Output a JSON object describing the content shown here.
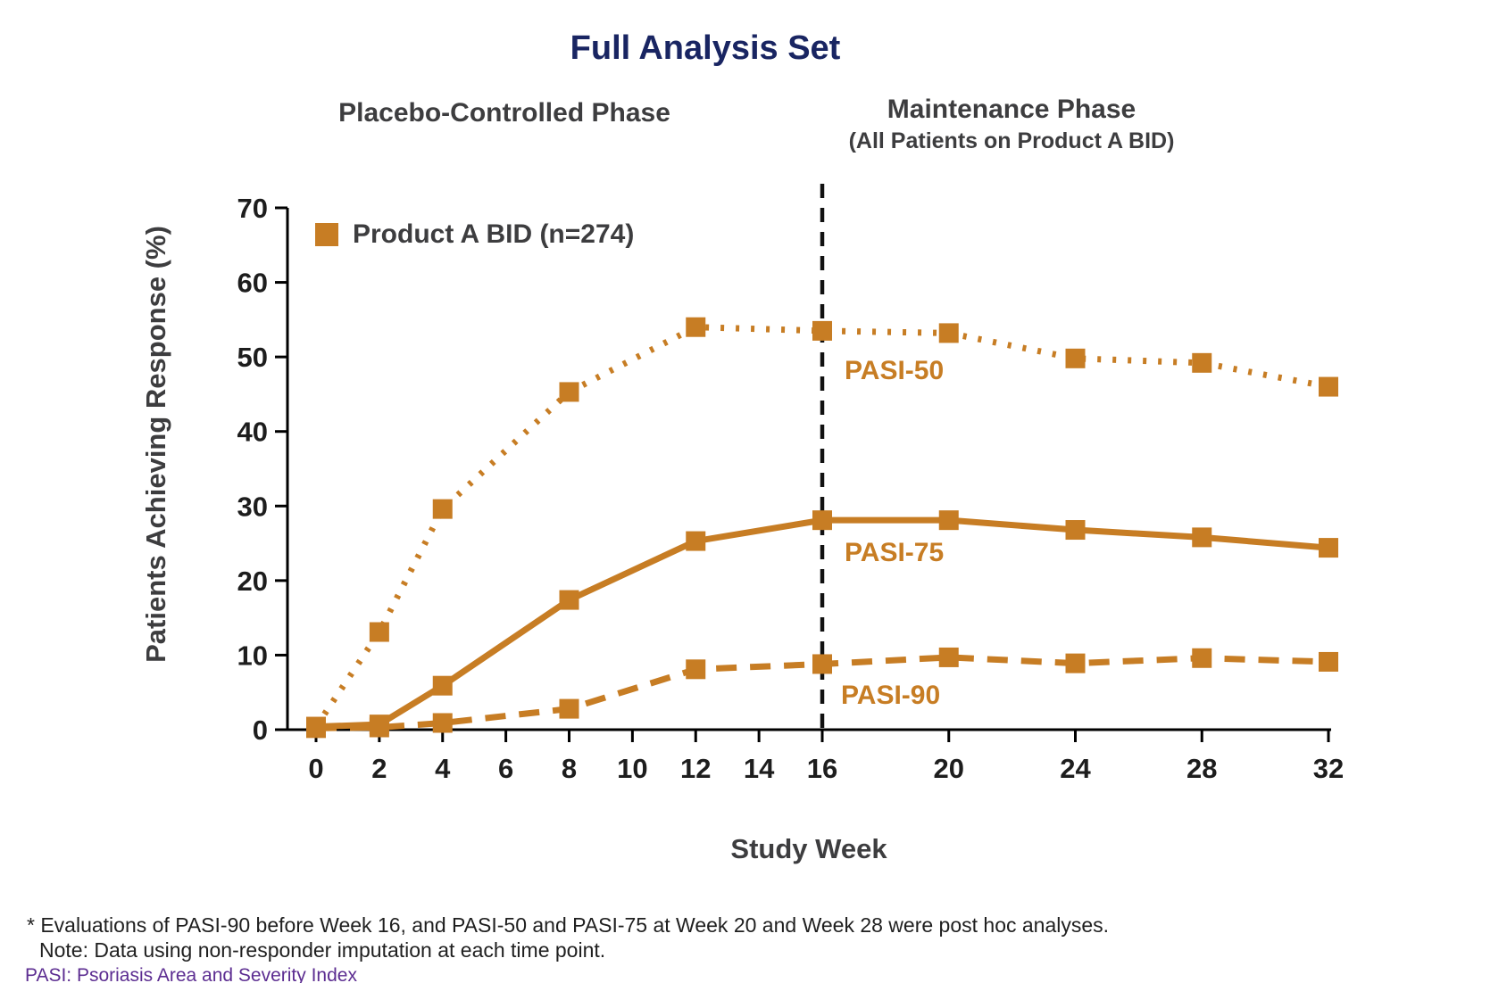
{
  "title": "Full Analysis Set",
  "phases": {
    "placebo": "Placebo-Controlled Phase",
    "maintenance_line1": "Maintenance Phase",
    "maintenance_line2": "(All Patients on Product A BID)"
  },
  "legend": {
    "label": "Product A BID (n=274)"
  },
  "annotations": {
    "pasi50": "PASI-50",
    "pasi75": "PASI-75",
    "pasi90": "PASI-90"
  },
  "chart_data": {
    "type": "line",
    "title": "Full Analysis Set",
    "xlabel": "Study Week",
    "ylabel": "Patients Achieving Response (%)",
    "ylim": [
      0,
      70
    ],
    "yticks": [
      0,
      10,
      20,
      30,
      40,
      50,
      60,
      70
    ],
    "xticks": [
      0,
      2,
      4,
      6,
      8,
      10,
      12,
      14,
      16,
      20,
      24,
      28,
      32
    ],
    "x": [
      0,
      2,
      4,
      8,
      12,
      16,
      20,
      24,
      28,
      32
    ],
    "series": [
      {
        "name": "PASI-50",
        "style": "dotted",
        "values": [
          0.4,
          13.1,
          29.6,
          45.3,
          54.0,
          53.5,
          53.2,
          49.8,
          49.2,
          46.0
        ]
      },
      {
        "name": "PASI-90",
        "style": "dashed",
        "values": [
          0.2,
          0.3,
          0.9,
          2.8,
          8.1,
          8.8,
          9.7,
          8.9,
          9.6,
          9.1
        ]
      },
      {
        "name": "PASI-75",
        "style": "solid",
        "values": [
          0.4,
          0.7,
          5.9,
          17.4,
          25.3,
          28.1,
          28.1,
          26.8,
          25.8,
          24.4
        ]
      }
    ],
    "reference_line_x": 16,
    "legend_entry": "Product A BID (n=274)",
    "grid": "off",
    "legend_position": "top-left-inside"
  },
  "footnotes": {
    "line1": "* Evaluations of PASI-90 before Week 16, and PASI-50 and PASI-75 at Week 20 and Week 28 were post hoc analyses.",
    "line2": "Note: Data using non-responder imputation at each time point.",
    "line3": "PASI: Psoriasis Area and Severity Index"
  },
  "colors": {
    "accent": "#C77D24",
    "navy": "#192562",
    "gray_heading": "#3D3D3F",
    "purple": "#5C2D91",
    "axis": "#000000"
  }
}
